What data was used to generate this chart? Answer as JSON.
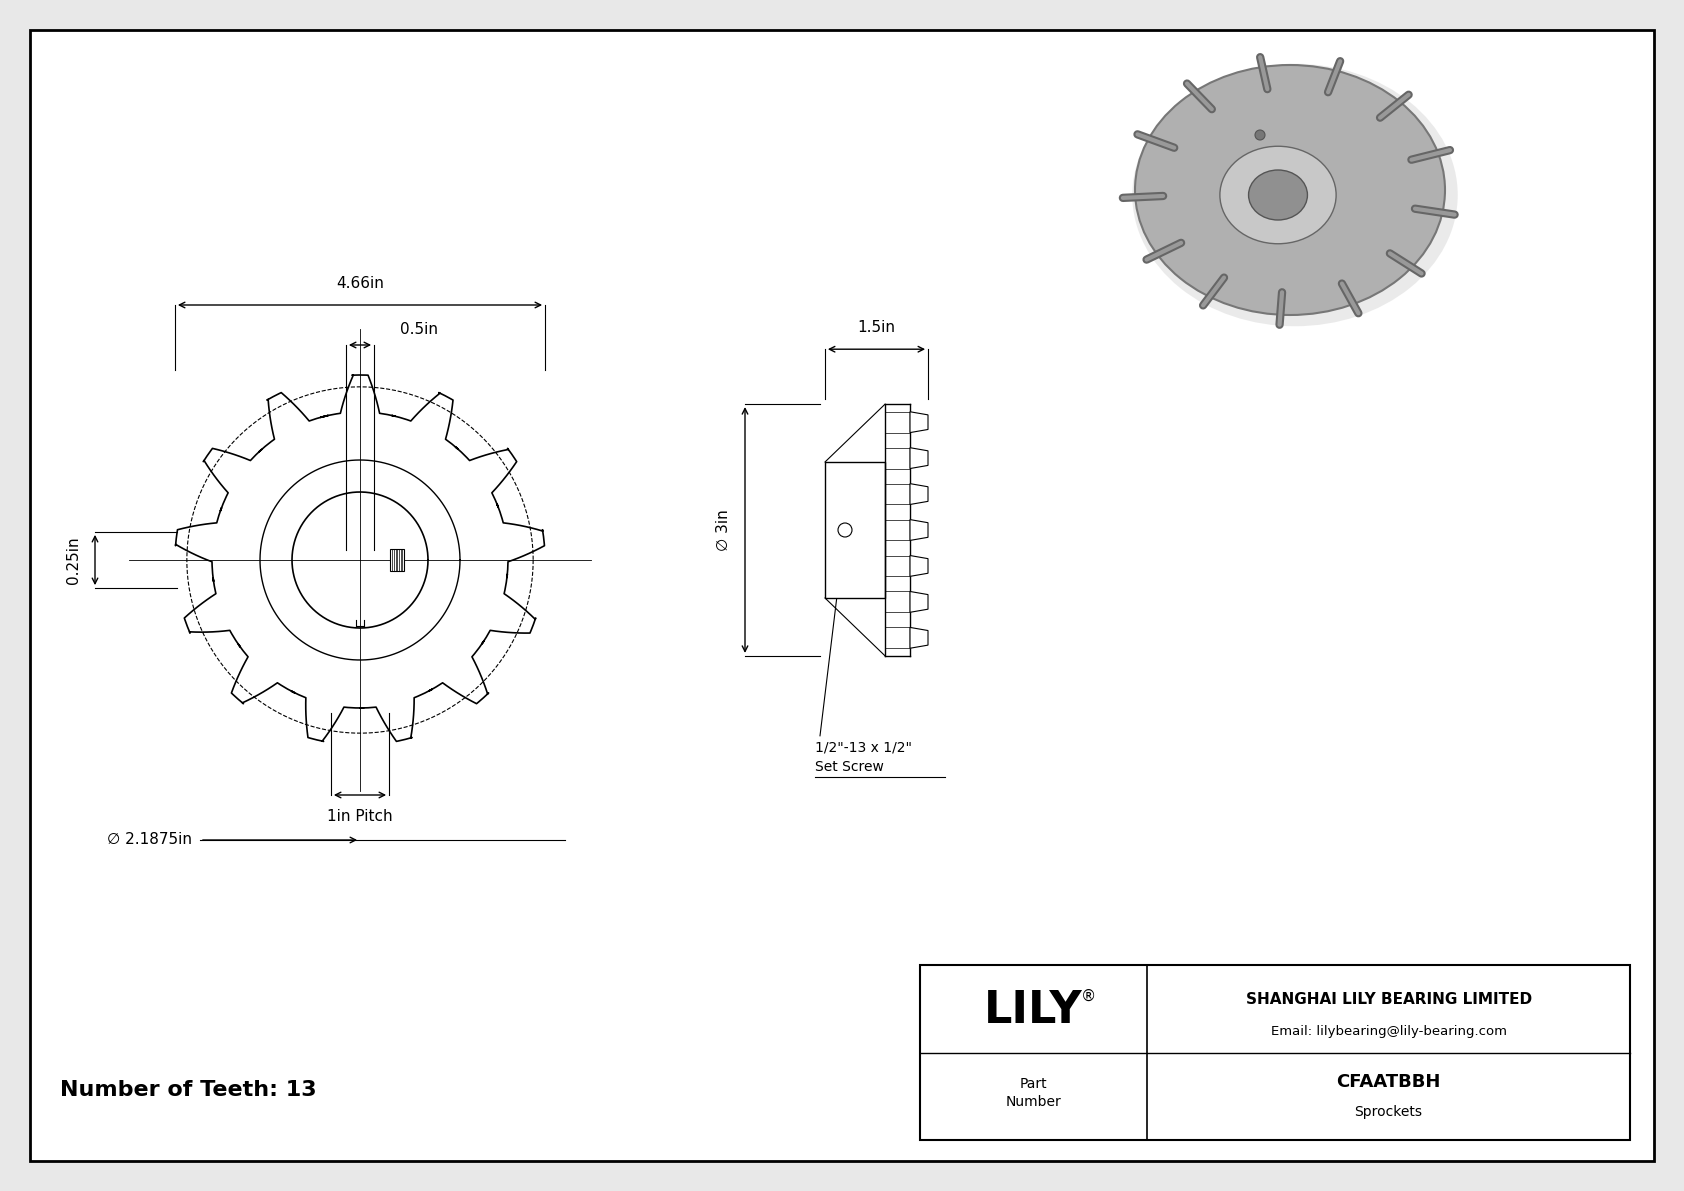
{
  "bg_color": "#e8e8e8",
  "drawing_bg": "#ffffff",
  "border_color": "#000000",
  "line_color": "#000000",
  "title_company": "SHANGHAI LILY BEARING LIMITED",
  "title_email": "Email: lilybearing@lily-bearing.com",
  "part_label": "Part\nNumber",
  "part_number": "CFAATBBH",
  "part_category": "Sprockets",
  "lily_text": "LILY",
  "teeth_label": "Number of Teeth: 13",
  "dim_466": "4.66in",
  "dim_05": "0.5in",
  "dim_025": "0.25in",
  "dim_15": "1.5in",
  "dim_3": "∅ 3in",
  "dim_pitch": "1in Pitch",
  "dim_bore": "∅ 2.1875in",
  "dim_setscrew": "1/2\"-13 x 1/2\"\nSet Screw",
  "num_teeth": 13
}
